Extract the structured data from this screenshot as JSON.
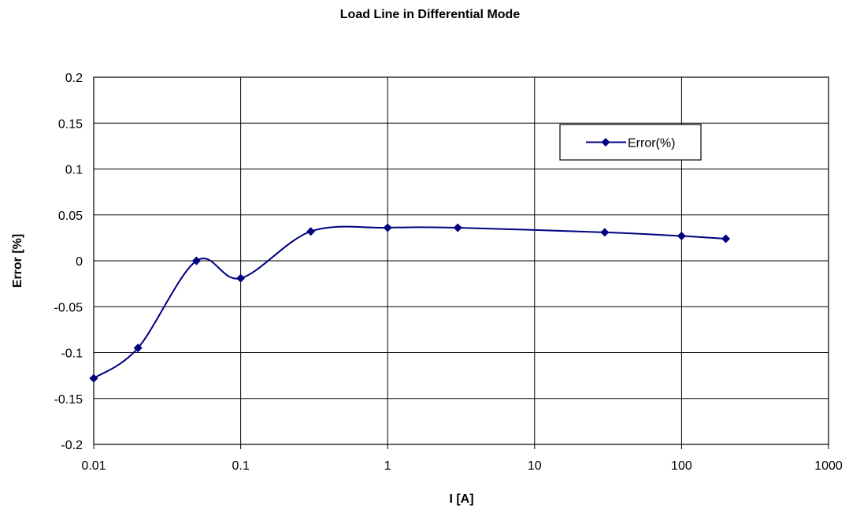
{
  "chart_data": {
    "type": "line",
    "title": "Load Line in Differential Mode",
    "xlabel": "I [A]",
    "ylabel": "Error [%]",
    "xscale": "log",
    "xlim": [
      0.01,
      1000
    ],
    "ylim": [
      -0.2,
      0.2
    ],
    "x_ticks": [
      "0.01",
      "0.1",
      "1",
      "10",
      "100",
      "1000"
    ],
    "y_ticks": [
      "0.2",
      "0.15",
      "0.1",
      "0.05",
      "0",
      "-0.05",
      "-0.1",
      "-0.15",
      "-0.2"
    ],
    "grid": true,
    "legend_position": "top-right",
    "series": [
      {
        "name": "Error(%)",
        "color": "#000080",
        "marker": "diamond",
        "smooth": true,
        "x": [
          0.01,
          0.02,
          0.05,
          0.1,
          0.3,
          1,
          3,
          30,
          100,
          200
        ],
        "y": [
          -0.128,
          -0.095,
          0.0,
          -0.019,
          0.032,
          0.036,
          0.036,
          0.031,
          0.027,
          0.024
        ]
      }
    ]
  }
}
